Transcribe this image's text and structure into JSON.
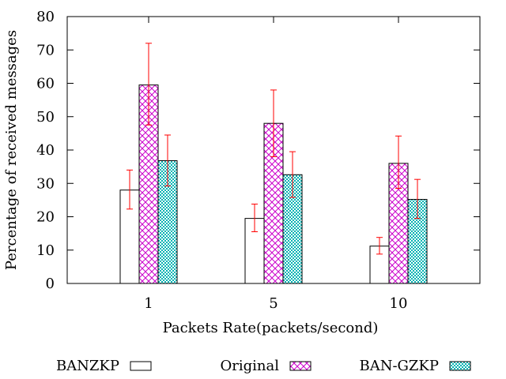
{
  "chart_data": {
    "type": "bar",
    "title": "",
    "xlabel": "Packets Rate(packets/second)",
    "ylabel": "Percentage of received messages",
    "categories": [
      "1",
      "5",
      "10"
    ],
    "ylim": [
      0,
      80
    ],
    "yticks": [
      "0",
      "10",
      "20",
      "30",
      "40",
      "50",
      "60",
      "70",
      "80"
    ],
    "grid": false,
    "legend_position": "bottom",
    "series": [
      {
        "name": "BANZKP",
        "fill": "none",
        "color": "#000000",
        "values": [
          28,
          19.5,
          11.2
        ],
        "error_low": [
          22.3,
          15.5,
          8.8
        ],
        "error_high": [
          34,
          23.8,
          13.8
        ]
      },
      {
        "name": "Original",
        "fill": "crosshatch",
        "color": "#cc00cc",
        "values": [
          59.5,
          48,
          36
        ],
        "error_low": [
          47.5,
          38,
          28.5
        ],
        "error_high": [
          72,
          58,
          44.2
        ]
      },
      {
        "name": "BAN-GZKP",
        "fill": "dots",
        "color": "#00aaaa",
        "values": [
          36.8,
          32.6,
          25.2
        ],
        "error_low": [
          29.2,
          25.8,
          19.5
        ],
        "error_high": [
          44.5,
          39.5,
          31.2
        ]
      }
    ],
    "error_bar_color": "#ff0000"
  }
}
